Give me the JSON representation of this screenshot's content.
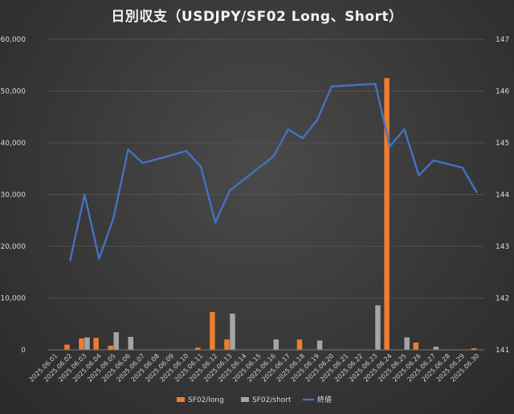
{
  "chart_data": {
    "type": "bar",
    "title": "日別収支（USDJPY/SF02 Long、Short）",
    "xlabel": "",
    "ylabel": "",
    "categories": [
      "2025.06.01",
      "2025.06.02",
      "2025.06.03",
      "2025.06.04",
      "2025.06.05",
      "2025.06.06",
      "2025.06.07",
      "2025.06.08",
      "2025.06.09",
      "2025.06.10",
      "2025.06.11",
      "2025.06.12",
      "2025.06.13",
      "2025.06.14",
      "2025.06.15",
      "2025.06.16",
      "2025.06.17",
      "2025.06.18",
      "2025.06.19",
      "2025.06.20",
      "2025.06.21",
      "2025.06.22",
      "2025.06.23",
      "2025.06.24",
      "2025.06.25",
      "2025.06.26",
      "2025.06.27",
      "2025.06.28",
      "2025.06.29",
      "2025.06.30"
    ],
    "ylim": [
      0,
      60000
    ],
    "y2lim": [
      141,
      147
    ],
    "yticks": [
      "0",
      "10,000",
      "20,000",
      "30,000",
      "40,000",
      "50,000",
      "60,000"
    ],
    "y2ticks": [
      "141",
      "142",
      "143",
      "144",
      "145",
      "146",
      "147"
    ],
    "grid": true,
    "legend_position": "bottom",
    "series": [
      {
        "name": "SF02/long",
        "type": "bar",
        "axis": "left",
        "color": "#ed7d31",
        "values": [
          0,
          1000,
          2200,
          2300,
          800,
          0,
          0,
          0,
          0,
          0,
          400,
          7300,
          2000,
          0,
          0,
          0,
          0,
          2000,
          0,
          0,
          0,
          0,
          0,
          52500,
          0,
          1400,
          0,
          0,
          0,
          300
        ]
      },
      {
        "name": "SF02/short",
        "type": "bar",
        "axis": "left",
        "color": "#a5a5a5",
        "values": [
          0,
          0,
          2400,
          0,
          3400,
          2500,
          0,
          0,
          0,
          0,
          0,
          0,
          7000,
          0,
          0,
          2000,
          0,
          0,
          1800,
          0,
          0,
          0,
          8600,
          0,
          2400,
          0,
          600,
          0,
          0,
          0
        ]
      },
      {
        "name": "終値",
        "type": "line",
        "axis": "right",
        "color": "#4472c4",
        "values": [
          null,
          142.72,
          144.0,
          142.76,
          143.55,
          144.87,
          144.61,
          null,
          null,
          144.84,
          144.54,
          143.46,
          144.08,
          null,
          null,
          144.74,
          145.26,
          145.09,
          145.44,
          146.09,
          null,
          null,
          146.14,
          144.93,
          145.26,
          144.37,
          144.66,
          null,
          144.52,
          144.03
        ]
      }
    ]
  }
}
